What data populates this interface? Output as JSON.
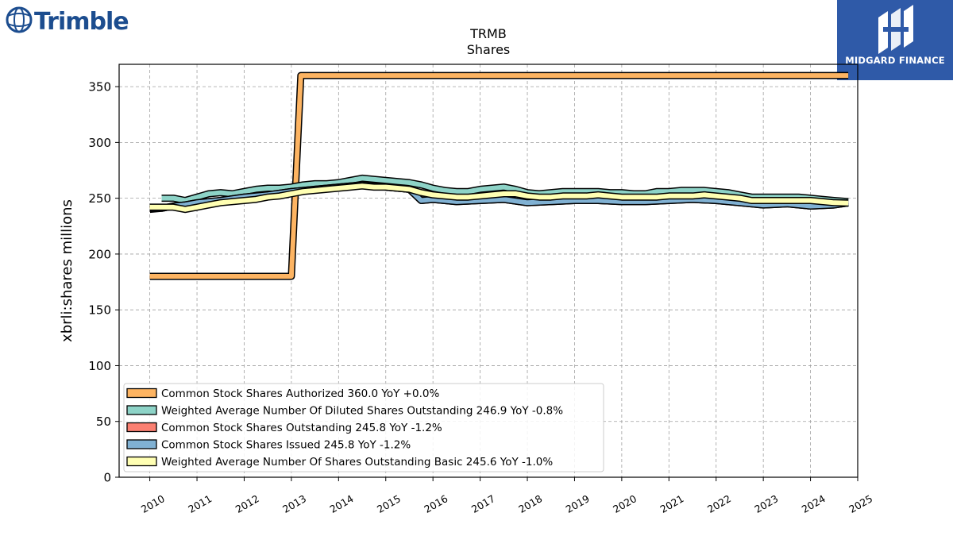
{
  "brand": {
    "left_logo_text": "Trimble",
    "right_logo_text": "MIDGARD FINANCE",
    "left_color": "#1c4d8f",
    "right_bg": "#2f5aa8"
  },
  "chart_data": {
    "type": "line",
    "title": "TRMB",
    "subtitle": "Shares",
    "xlabel": "",
    "ylabel": "xbrli:shares millions",
    "xlim": [
      2009.35,
      2025.0
    ],
    "ylim": [
      0,
      370
    ],
    "x_ticks": [
      "2010",
      "2011",
      "2012",
      "2013",
      "2014",
      "2015",
      "2016",
      "2017",
      "2018",
      "2019",
      "2020",
      "2021",
      "2022",
      "2023",
      "2024",
      "2025"
    ],
    "y_ticks": [
      0,
      50,
      100,
      150,
      200,
      250,
      300,
      350
    ],
    "grid": true,
    "legend_position": "lower-left",
    "series": [
      {
        "name": "Common Stock Shares Authorized",
        "legend": "Common Stock Shares Authorized  360.0 YoY +0.0%",
        "color": "#fdb462",
        "x": [
          2010.0,
          2013.0,
          2013.2,
          2024.8
        ],
        "y": [
          180,
          180,
          360,
          360
        ]
      },
      {
        "name": "Weighted Average Number Of Diluted Shares Outstanding",
        "legend": "Weighted Average Number Of Diluted Shares Outstanding  246.9 YoY -0.8%",
        "color": "#8dd3c7",
        "x": [
          2010.25,
          2010.5,
          2010.75,
          2011.0,
          2011.25,
          2011.5,
          2011.75,
          2012.0,
          2012.25,
          2012.5,
          2012.75,
          2013.0,
          2013.25,
          2013.5,
          2013.75,
          2014.0,
          2014.25,
          2014.5,
          2014.75,
          2015.0,
          2015.25,
          2015.5,
          2015.75,
          2016.0,
          2016.25,
          2016.5,
          2016.75,
          2017.0,
          2017.25,
          2017.5,
          2017.75,
          2018.0,
          2018.25,
          2018.5,
          2018.75,
          2019.0,
          2019.25,
          2019.5,
          2019.75,
          2020.0,
          2020.25,
          2020.5,
          2020.75,
          2021.0,
          2021.25,
          2021.5,
          2021.75,
          2022.0,
          2022.25,
          2022.5,
          2022.75,
          2023.0,
          2023.25,
          2023.5,
          2023.75,
          2024.0,
          2024.25,
          2024.5,
          2024.8
        ],
        "y": [
          250,
          250,
          248,
          251,
          254,
          255,
          254,
          256,
          258,
          259,
          259,
          260,
          262,
          263,
          263,
          264,
          266,
          268,
          267,
          266,
          265,
          264,
          262,
          259,
          257,
          256,
          256,
          258,
          259,
          260,
          258,
          255,
          254,
          255,
          256,
          256,
          256,
          256,
          255,
          255,
          254,
          254,
          256,
          256,
          257,
          257,
          257,
          256,
          255,
          253,
          251,
          251,
          251,
          251,
          251,
          250,
          249,
          248,
          247
        ]
      },
      {
        "name": "Common Stock Shares Outstanding",
        "legend": "Common Stock Shares Outstanding  245.8 YoY -1.2%",
        "color": "#fb8072",
        "x": [
          2010.0,
          2010.25,
          2010.5,
          2010.75,
          2011.0,
          2011.5,
          2012.0,
          2012.5,
          2013.0,
          2013.5,
          2014.0,
          2014.5,
          2015.0,
          2015.5,
          2015.75,
          2016.0,
          2016.5,
          2017.0,
          2017.5,
          2018.0,
          2018.5,
          2019.0,
          2019.5,
          2020.0,
          2020.5,
          2021.0,
          2021.5,
          2022.0,
          2022.5,
          2023.0,
          2023.5,
          2024.0,
          2024.5,
          2024.8
        ],
        "y": [
          240,
          241,
          243,
          244,
          246,
          248,
          251,
          253,
          256,
          258,
          260,
          262,
          260,
          258,
          248,
          249,
          247,
          248,
          249,
          246,
          247,
          248,
          248,
          247,
          247,
          248,
          249,
          248,
          246,
          244,
          245,
          243,
          244,
          245.8
        ]
      },
      {
        "name": "Common Stock Shares Issued",
        "legend": "Common Stock Shares Issued  245.8 YoY -1.2%",
        "color": "#80b1d3",
        "x": [
          2010.0,
          2010.25,
          2010.5,
          2010.75,
          2011.0,
          2011.5,
          2012.0,
          2012.5,
          2013.0,
          2013.5,
          2014.0,
          2014.5,
          2015.0,
          2015.5,
          2015.75,
          2016.0,
          2016.5,
          2017.0,
          2017.5,
          2018.0,
          2018.5,
          2019.0,
          2019.5,
          2020.0,
          2020.5,
          2021.0,
          2021.5,
          2022.0,
          2022.5,
          2023.0,
          2023.5,
          2024.0,
          2024.5,
          2024.8
        ],
        "y": [
          241,
          241,
          243,
          244,
          246,
          248,
          251,
          253,
          256,
          258,
          260,
          262,
          260,
          258,
          248,
          249,
          247,
          248,
          249,
          246,
          247,
          248,
          248,
          247,
          247,
          248,
          249,
          248,
          246,
          244,
          245,
          243,
          244,
          245.8
        ]
      },
      {
        "name": "Weighted Average Number Of Shares Outstanding Basic",
        "legend": "Weighted Average Number Of Shares Outstanding Basic  245.6 YoY -1.0%",
        "color": "#ffffb3",
        "x": [
          2010.0,
          2010.25,
          2010.5,
          2010.75,
          2011.0,
          2011.25,
          2011.5,
          2011.75,
          2012.0,
          2012.25,
          2012.5,
          2012.75,
          2013.0,
          2013.25,
          2013.5,
          2013.75,
          2014.0,
          2014.25,
          2014.5,
          2014.75,
          2015.0,
          2015.25,
          2015.5,
          2015.75,
          2016.0,
          2016.25,
          2016.5,
          2016.75,
          2017.0,
          2017.25,
          2017.5,
          2017.75,
          2018.0,
          2018.25,
          2018.5,
          2018.75,
          2019.0,
          2019.25,
          2019.5,
          2019.75,
          2020.0,
          2020.25,
          2020.5,
          2020.75,
          2021.0,
          2021.25,
          2021.5,
          2021.75,
          2022.0,
          2022.25,
          2022.5,
          2022.75,
          2023.0,
          2023.25,
          2023.5,
          2023.75,
          2024.0,
          2024.25,
          2024.5,
          2024.8
        ],
        "y": [
          242,
          242,
          242,
          240,
          242,
          244,
          246,
          247,
          248,
          249,
          251,
          252,
          254,
          256,
          257,
          258,
          259,
          260,
          261,
          260,
          260,
          259,
          258,
          255,
          253,
          252,
          251,
          251,
          252,
          253,
          254,
          254,
          252,
          251,
          251,
          252,
          252,
          252,
          253,
          252,
          251,
          251,
          251,
          251,
          252,
          252,
          252,
          253,
          252,
          251,
          250,
          248,
          248,
          248,
          248,
          248,
          248,
          247,
          246,
          245.6
        ]
      }
    ]
  }
}
